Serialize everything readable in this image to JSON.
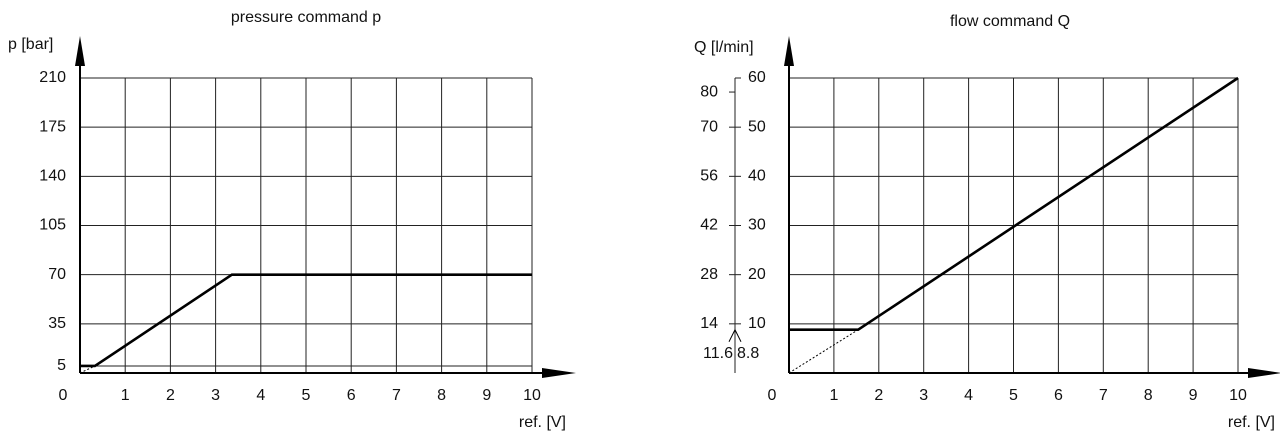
{
  "chart_data": [
    {
      "type": "line",
      "title": "pressure command p",
      "y_label": "p [bar]",
      "x_label": "ref. [V]",
      "xlim": [
        0,
        10
      ],
      "xticks": [
        0,
        1,
        2,
        3,
        4,
        5,
        6,
        7,
        8,
        9,
        10
      ],
      "ylim": [
        0,
        210
      ],
      "yticks": [
        5,
        35,
        70,
        105,
        140,
        175,
        210
      ],
      "grid": true,
      "series": [
        {
          "x": [
            0,
            0.33,
            3.36,
            10
          ],
          "values": [
            5,
            5,
            70,
            70
          ],
          "color": "#000000",
          "style": "solid"
        },
        {
          "x": [
            0,
            0.33
          ],
          "values": [
            0,
            5
          ],
          "color": "#000000",
          "style": "dotted"
        }
      ]
    },
    {
      "type": "line",
      "title": "flow command Q",
      "y_label": "Q [l/min]",
      "x_label": "ref. [V]",
      "xlim": [
        0,
        10
      ],
      "xticks": [
        0,
        1,
        2,
        3,
        4,
        5,
        6,
        7,
        8,
        9,
        10
      ],
      "ylim": [
        0,
        60
      ],
      "yticks": [
        10,
        20,
        30,
        40,
        50,
        60
      ],
      "y2lim": [
        0,
        84
      ],
      "y2ticks": [
        14,
        28,
        42,
        56,
        70,
        80
      ],
      "grid": true,
      "min_level": 8.8,
      "min_level_y2": 11.6,
      "series": [
        {
          "x": [
            0,
            1.54,
            10
          ],
          "values": [
            8.8,
            8.8,
            60
          ],
          "color": "#000000",
          "style": "solid"
        },
        {
          "x": [
            0,
            1.54
          ],
          "values": [
            0,
            8.8
          ],
          "color": "#000000",
          "style": "dotted"
        }
      ]
    }
  ]
}
